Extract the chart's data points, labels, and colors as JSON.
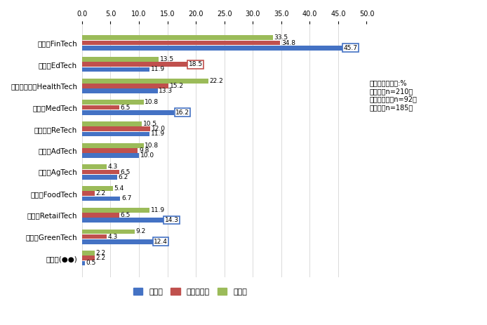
{
  "categories": [
    "金融：FinTech",
    "教育：EdTech",
    "ヘルスケア：HealthTech",
    "医療：MedTech",
    "不動産：ReTech",
    "広告：AdTech",
    "農業：AgTech",
    "飲食：FoodTech",
    "小売：RetailTech",
    "環境：GreenTech",
    "その他(●●)"
  ],
  "daikigyou": [
    45.7,
    11.9,
    13.3,
    16.2,
    11.9,
    10.0,
    6.2,
    6.7,
    14.3,
    12.4,
    0.5
  ],
  "venture": [
    34.8,
    18.5,
    15.2,
    6.5,
    12.0,
    9.8,
    6.5,
    2.2,
    6.5,
    4.3,
    2.2
  ],
  "sonota": [
    33.5,
    13.5,
    22.2,
    10.8,
    10.5,
    10.8,
    4.3,
    5.4,
    11.9,
    9.2,
    2.2
  ],
  "color_daikigyou": "#4472C4",
  "color_venture": "#C0504D",
  "color_sonota": "#9BBB59",
  "note_line1": "複数回答、単位:%",
  "note_line2": "大企業（n=210）",
  "note_line3": "ベンチャー（n=92）",
  "note_line4": "その他（n=185）",
  "legend_daikigyou": "大企業",
  "legend_venture": "ベンチャー",
  "legend_sonota": "その他",
  "xlim": [
    0,
    50
  ],
  "xticks": [
    0.0,
    5.0,
    10.0,
    15.0,
    20.0,
    25.0,
    30.0,
    35.0,
    40.0,
    45.0,
    50.0
  ],
  "bar_height": 0.22,
  "bar_gap": 0.015
}
